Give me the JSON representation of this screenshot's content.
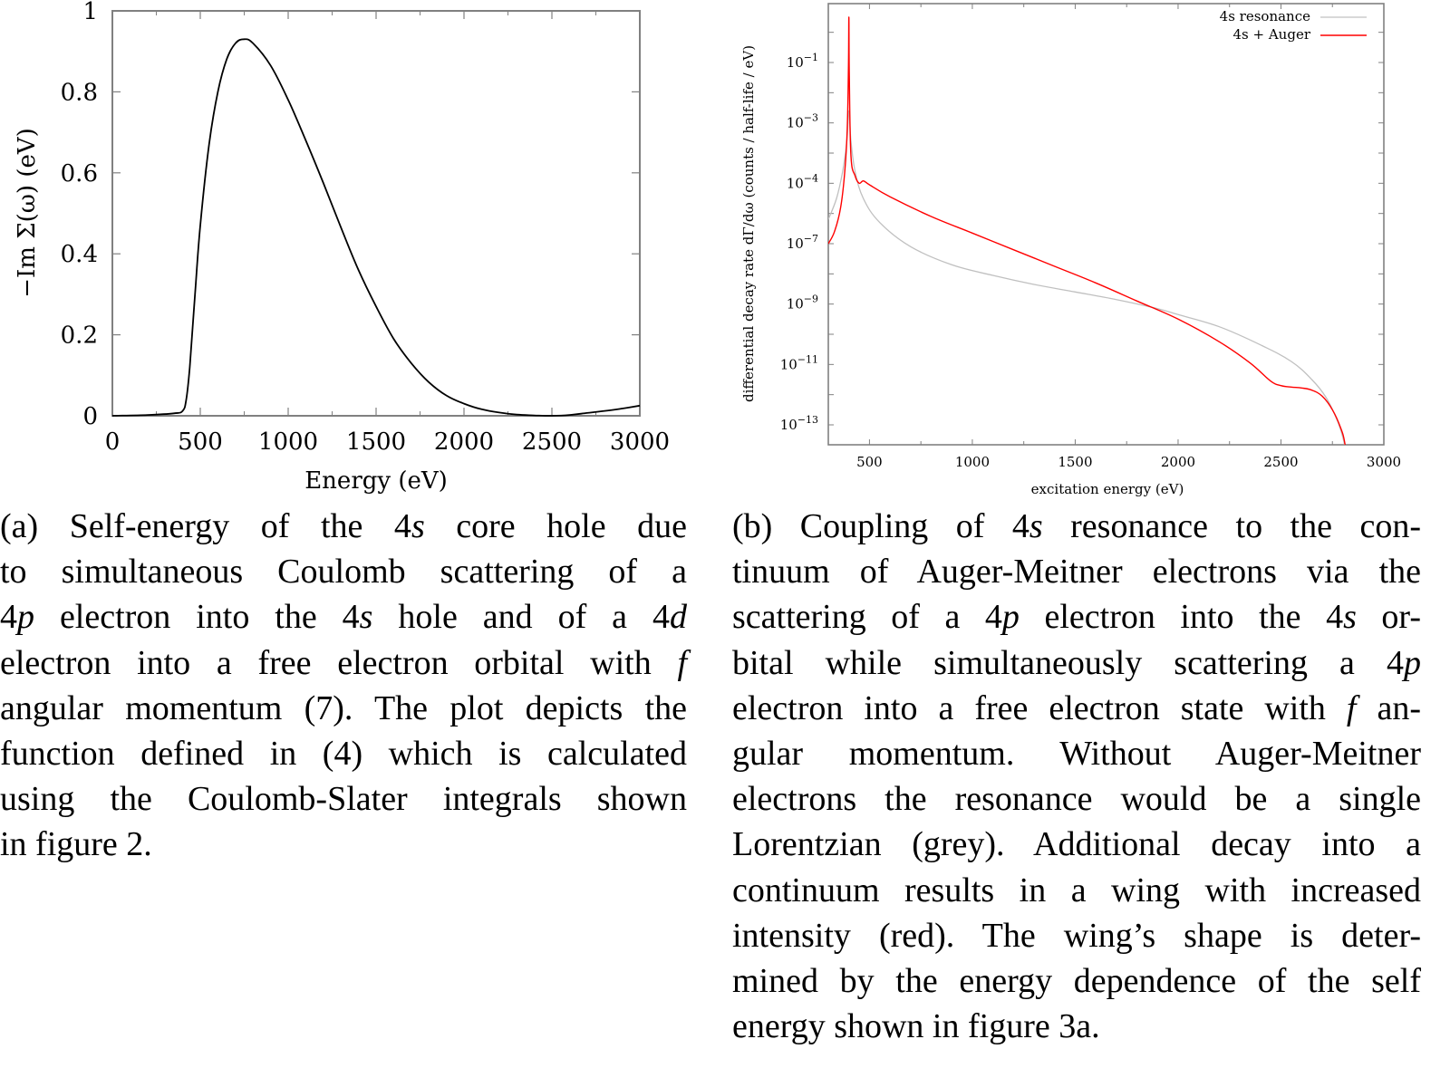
{
  "figure_a": {
    "label": "(a)",
    "chart_data": {
      "type": "line",
      "title": "",
      "xlabel": "Energy (eV)",
      "ylabel": "−Im Σ(ω) (eV)",
      "xlim": [
        0,
        3000
      ],
      "ylim": [
        0,
        1
      ],
      "xticks": [
        "0",
        "500",
        "1000",
        "1500",
        "2000",
        "2500",
        "3000"
      ],
      "yticks": [
        "0",
        "0.2",
        "0.4",
        "0.6",
        "0.8",
        "1"
      ],
      "grid": false,
      "legend": null,
      "series": [
        {
          "name": "−Im Σ(ω)",
          "color": "#000000",
          "x": [
            0,
            200,
            350,
            400,
            420,
            440,
            470,
            500,
            550,
            600,
            650,
            700,
            750,
            800,
            900,
            1000,
            1100,
            1200,
            1300,
            1400,
            1500,
            1600,
            1700,
            1800,
            1900,
            2000,
            2100,
            2200,
            2300,
            2400,
            2500,
            2600,
            2700,
            2800,
            2900,
            3000
          ],
          "y": [
            0.0,
            0.002,
            0.006,
            0.012,
            0.04,
            0.12,
            0.3,
            0.47,
            0.67,
            0.8,
            0.88,
            0.92,
            0.93,
            0.92,
            0.865,
            0.78,
            0.68,
            0.575,
            0.465,
            0.36,
            0.27,
            0.19,
            0.13,
            0.083,
            0.05,
            0.03,
            0.016,
            0.008,
            0.003,
            0.001,
            0.0,
            0.002,
            0.007,
            0.012,
            0.018,
            0.025
          ]
        }
      ]
    },
    "caption_lines": [
      [
        "(a) Self-energy of the 4",
        "s",
        " core hole due"
      ],
      [
        "to simultaneous Coulomb scattering of a"
      ],
      [
        "4",
        "p",
        " electron into the 4",
        "s",
        " hole and of a 4",
        "d"
      ],
      [
        "electron into a free electron orbital with ",
        "f"
      ],
      [
        "angular momentum (7). The plot depicts the"
      ],
      [
        "function defined in (4) which is calculated"
      ],
      [
        "using the Coulomb-Slater integrals shown"
      ],
      [
        "in figure 2."
      ]
    ]
  },
  "figure_b": {
    "label": "(b)",
    "chart_data": {
      "type": "line",
      "title": "",
      "xlabel": "excitation energy (eV)",
      "ylabel": "differential decay rate dΓ/dω (counts / half-life / eV)",
      "yscale": "log",
      "xlim": [
        300,
        3000
      ],
      "ylim_log10": [
        -13.66,
        0.95
      ],
      "xticks": [
        "500",
        "1000",
        "1500",
        "2000",
        "2500",
        "3000"
      ],
      "yticks": [
        "10⁻¹",
        "10⁻³",
        "10⁻⁴",
        "10⁻⁷",
        "10⁻⁹",
        "10⁻¹¹",
        "10⁻¹³"
      ],
      "ytick_exponents": [
        "−1",
        "−3",
        "−4",
        "−7",
        "−9",
        "−11",
        "−13"
      ],
      "grid": false,
      "legend": {
        "position": "top-right"
      },
      "series": [
        {
          "name": "4s resonance",
          "color": "#c0c0c0",
          "x": [
            300,
            340,
            370,
            390,
            400,
            410,
            430,
            470,
            550,
            700,
            900,
            1100,
            1300,
            1500,
            1700,
            1900,
            2000,
            2200,
            2400,
            2550,
            2650,
            2720,
            2770,
            2800,
            2815,
            2825
          ],
          "log10_y": [
            -6.2,
            -5.5,
            -4.6,
            -3.6,
            -2.6,
            -3.6,
            -4.6,
            -5.5,
            -6.3,
            -7.1,
            -7.7,
            -8.05,
            -8.35,
            -8.6,
            -8.85,
            -9.15,
            -9.35,
            -9.75,
            -10.35,
            -10.9,
            -11.5,
            -12.1,
            -12.8,
            -13.4,
            -13.9,
            -14.5
          ]
        },
        {
          "name": "4s + Auger",
          "color": "#ff0000",
          "x": [
            300,
            330,
            360,
            380,
            392,
            398,
            400,
            402,
            410,
            430,
            450,
            470,
            500,
            600,
            800,
            1000,
            1200,
            1400,
            1600,
            1800,
            2000,
            2200,
            2350,
            2450,
            2500,
            2550,
            2600,
            2650,
            2700,
            2750,
            2790,
            2810,
            2825
          ],
          "log10_y": [
            -7.0,
            -6.6,
            -5.8,
            -4.6,
            -3.2,
            -1.2,
            0.5,
            -1.5,
            -4.1,
            -4.75,
            -5.0,
            -4.92,
            -5.05,
            -5.45,
            -6.1,
            -6.65,
            -7.2,
            -7.75,
            -8.3,
            -8.9,
            -9.5,
            -10.25,
            -10.95,
            -11.55,
            -11.7,
            -11.75,
            -11.78,
            -11.85,
            -12.05,
            -12.5,
            -13.1,
            -13.6,
            -14.5
          ]
        }
      ]
    },
    "caption_lines": [
      [
        "(b) Coupling of 4",
        "s",
        " resonance to the con-"
      ],
      [
        "tinuum of Auger-Meitner electrons via the"
      ],
      [
        "scattering of a 4",
        "p",
        " electron into the 4",
        "s",
        " or-"
      ],
      [
        "bital while simultaneously scattering a 4",
        "p"
      ],
      [
        "electron into a free electron state with ",
        "f",
        " an-"
      ],
      [
        "gular momentum.  Without Auger-Meitner"
      ],
      [
        "electrons the resonance would be a single"
      ],
      [
        "Lorentzian (grey).  Additional decay into a"
      ],
      [
        "continuum results in a wing with increased"
      ],
      [
        "intensity (red).  The wing’s shape is deter-"
      ],
      [
        "mined by the energy dependence of the self"
      ],
      [
        "energy shown in figure 3a."
      ]
    ]
  },
  "colors": {
    "axis": "#808080",
    "curve_a": "#000000",
    "grey_series": "#c0c0c0",
    "red_series": "#ff0000"
  }
}
